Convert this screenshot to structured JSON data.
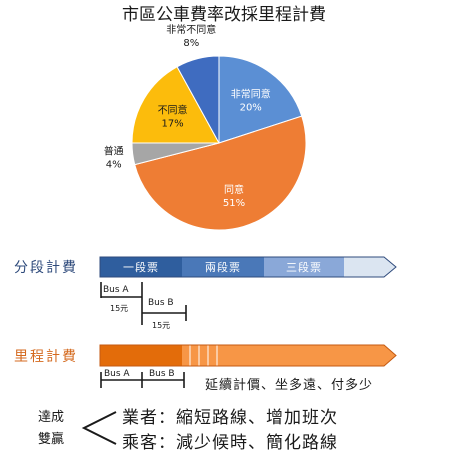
{
  "chart_data": {
    "type": "pie",
    "title": "市區公車費率改採里程計費",
    "slices": [
      {
        "name": "非常同意",
        "value": 20,
        "label": "20%",
        "color": "#5b8fd4"
      },
      {
        "name": "同意",
        "value": 51,
        "label": "51%",
        "color": "#ee7d34"
      },
      {
        "name": "普通",
        "value": 4,
        "label": "4%",
        "color": "#a6a6a6"
      },
      {
        "name": "不同意",
        "value": 17,
        "label": "17%",
        "color": "#fcbc0c"
      },
      {
        "name": "非常不同意",
        "value": 8,
        "label": "8%",
        "color": "#3f6cc0"
      }
    ]
  },
  "segment_fare": {
    "label": "分段計費",
    "segments": [
      "一段票",
      "兩段票",
      "三段票"
    ],
    "colors": [
      "#2f5e9e",
      "#4a78b8",
      "#8aa8d8",
      "#dbe5f1"
    ],
    "bus_a": "Bus A",
    "bus_b": "Bus B",
    "fare_a": "15元",
    "fare_b": "15元"
  },
  "mileage_fare": {
    "label": "里程計費",
    "colors": [
      "#e36c0a",
      "#f79646"
    ],
    "bus_a": "Bus A",
    "bus_b": "Bus B",
    "note": "延續計價、坐多遠、付多少"
  },
  "win_win": {
    "title_line1": "達成",
    "title_line2": "雙贏",
    "operator": "業者：縮短路線、增加班次",
    "passenger": "乘客：減少候時、簡化路線"
  }
}
